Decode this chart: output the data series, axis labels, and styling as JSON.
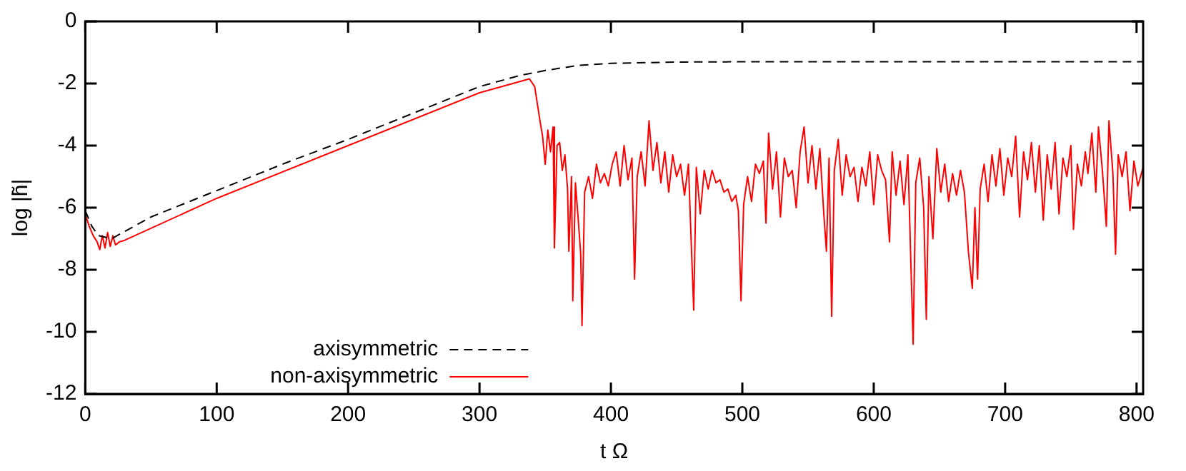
{
  "chart_data": {
    "type": "line",
    "xlabel": "t Ω",
    "ylabel": "log |h̃|",
    "xlim": [
      0,
      805
    ],
    "ylim": [
      -12,
      0
    ],
    "xticks": [
      0,
      100,
      200,
      300,
      400,
      500,
      600,
      700,
      800
    ],
    "yticks": [
      -12,
      -10,
      -8,
      -6,
      -4,
      -2,
      0
    ],
    "grid": false,
    "legend": "bottom left",
    "marker": "none",
    "series": [
      {
        "name": "axisymmetric",
        "color": "#000000",
        "line_style": "dashed",
        "x": [
          0,
          5,
          10,
          20,
          50,
          100,
          150,
          200,
          250,
          300,
          330,
          350,
          375,
          400,
          450,
          500,
          805
        ],
        "values": [
          -6.1,
          -6.6,
          -6.9,
          -7.0,
          -6.3,
          -5.45,
          -4.6,
          -3.8,
          -2.95,
          -2.1,
          -1.75,
          -1.58,
          -1.42,
          -1.35,
          -1.31,
          -1.3,
          -1.3
        ]
      },
      {
        "name": "non-axisymmetric",
        "color": "#ff0000",
        "line_style": "solid",
        "x": [
          0,
          3,
          6,
          9,
          11,
          13,
          15,
          17,
          19,
          21,
          23,
          26,
          30,
          100,
          200,
          300,
          338,
          342,
          346,
          348,
          350,
          352,
          354,
          356,
          357,
          359,
          361,
          363,
          365,
          367,
          368,
          370,
          371,
          373,
          375,
          377,
          378,
          380,
          383,
          386,
          389,
          392,
          395,
          398,
          401,
          404,
          407,
          410,
          413,
          416,
          418,
          420,
          423,
          426,
          429,
          432,
          435,
          438,
          441,
          444,
          447,
          450,
          453,
          456,
          459,
          461,
          463,
          465,
          468,
          471,
          474,
          477,
          480,
          483,
          486,
          489,
          492,
          495,
          497,
          499,
          501,
          504,
          507,
          510,
          513,
          516,
          518,
          520,
          523,
          526,
          529,
          532,
          535,
          538,
          541,
          544,
          547,
          550,
          553,
          556,
          559,
          562,
          564,
          566,
          568,
          570,
          573,
          576,
          579,
          582,
          585,
          588,
          591,
          594,
          597,
          600,
          603,
          606,
          609,
          612,
          614,
          617,
          620,
          623,
          626,
          628,
          630,
          632,
          635,
          638,
          640,
          642,
          645,
          648,
          651,
          654,
          657,
          660,
          663,
          666,
          669,
          672,
          675,
          677,
          679,
          681,
          684,
          687,
          690,
          693,
          696,
          699,
          702,
          705,
          708,
          711,
          714,
          717,
          720,
          723,
          726,
          729,
          732,
          735,
          738,
          741,
          744,
          747,
          750,
          752,
          755,
          758,
          761,
          763,
          766,
          769,
          771,
          774,
          777,
          779,
          782,
          784,
          786,
          789,
          792,
          795,
          798,
          801,
          805
        ],
        "values": [
          -6.2,
          -6.6,
          -6.9,
          -7.1,
          -7.35,
          -6.9,
          -7.3,
          -6.8,
          -7.25,
          -6.9,
          -7.2,
          -7.1,
          -7.05,
          -5.7,
          -4.0,
          -2.3,
          -1.85,
          -2.1,
          -3.2,
          -3.7,
          -4.6,
          -3.5,
          -4.2,
          -3.4,
          -7.3,
          -4.0,
          -3.9,
          -4.8,
          -4.3,
          -5.4,
          -7.4,
          -5.0,
          -9.0,
          -5.2,
          -6.3,
          -7.5,
          -9.8,
          -5.5,
          -5.0,
          -5.7,
          -4.6,
          -5.2,
          -4.9,
          -5.3,
          -4.6,
          -4.2,
          -5.3,
          -4.0,
          -5.1,
          -4.4,
          -8.3,
          -5.0,
          -4.2,
          -5.3,
          -3.2,
          -4.8,
          -3.9,
          -5.2,
          -4.2,
          -5.5,
          -4.3,
          -5.0,
          -4.6,
          -5.6,
          -4.6,
          -7.0,
          -9.3,
          -4.7,
          -6.2,
          -4.8,
          -5.4,
          -4.8,
          -5.2,
          -5.1,
          -5.5,
          -5.4,
          -5.8,
          -5.6,
          -6.1,
          -9.0,
          -5.9,
          -5.0,
          -5.8,
          -4.6,
          -4.9,
          -4.5,
          -6.5,
          -3.6,
          -5.4,
          -4.2,
          -6.3,
          -4.4,
          -5.0,
          -4.8,
          -6.0,
          -4.2,
          -3.4,
          -5.2,
          -4.0,
          -5.4,
          -4.1,
          -6.2,
          -7.4,
          -4.4,
          -9.5,
          -4.8,
          -3.8,
          -5.6,
          -4.3,
          -5.0,
          -4.7,
          -5.8,
          -4.7,
          -5.3,
          -4.2,
          -5.9,
          -4.3,
          -4.8,
          -5.1,
          -7.1,
          -4.2,
          -5.6,
          -4.5,
          -5.9,
          -4.3,
          -7.4,
          -10.4,
          -5.2,
          -4.4,
          -6.0,
          -9.6,
          -5.0,
          -7.0,
          -4.1,
          -5.5,
          -4.6,
          -5.8,
          -4.9,
          -5.6,
          -4.8,
          -5.5,
          -7.4,
          -8.6,
          -6.0,
          -8.3,
          -5.4,
          -4.6,
          -5.8,
          -4.3,
          -5.3,
          -4.1,
          -5.6,
          -4.4,
          -5.0,
          -3.7,
          -6.3,
          -4.2,
          -5.1,
          -3.9,
          -5.5,
          -4.0,
          -6.4,
          -4.3,
          -5.4,
          -3.9,
          -6.2,
          -4.4,
          -5.0,
          -4.0,
          -6.7,
          -4.6,
          -5.3,
          -4.2,
          -4.9,
          -3.6,
          -5.5,
          -3.4,
          -4.8,
          -6.6,
          -3.2,
          -4.9,
          -7.5,
          -4.3,
          -5.0,
          -4.2,
          -6.1,
          -4.5,
          -5.3,
          -4.7
        ]
      }
    ]
  }
}
